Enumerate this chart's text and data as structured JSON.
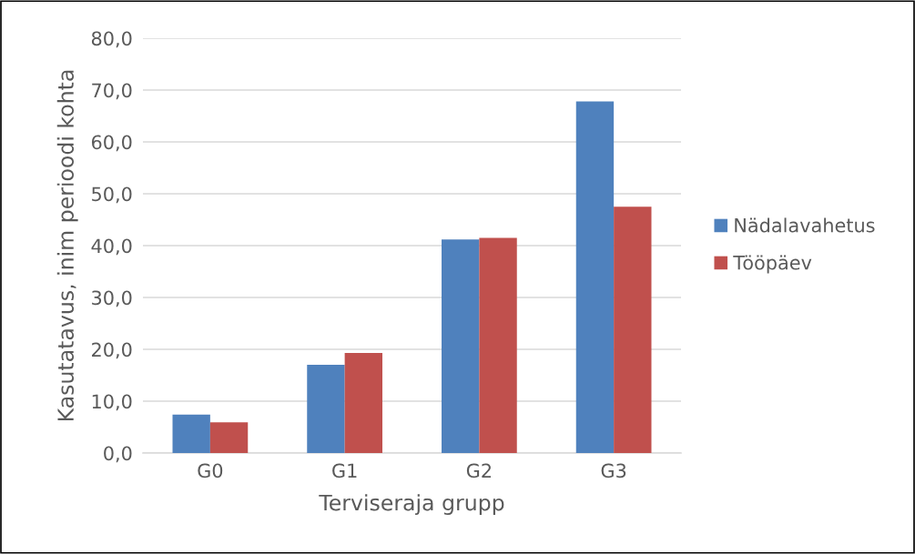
{
  "chart_data": {
    "type": "bar",
    "xlabel": "Terviseraja grupp",
    "ylabel": "Kasutatavus, inim perioodi kohta",
    "categories": [
      "G0",
      "G1",
      "G2",
      "G3"
    ],
    "series": [
      {
        "name": "Nädalavahetus",
        "color": "#4f81bd",
        "values": [
          7.4,
          17.0,
          41.2,
          67.8
        ]
      },
      {
        "name": "Tööpäev",
        "color": "#c0504d",
        "values": [
          5.9,
          19.3,
          41.5,
          47.5
        ]
      }
    ],
    "ylim": [
      0,
      80
    ],
    "yticks": [
      {
        "value": 0,
        "label": "0,0"
      },
      {
        "value": 10,
        "label": "10,0"
      },
      {
        "value": 20,
        "label": "20,0"
      },
      {
        "value": 30,
        "label": "30,0"
      },
      {
        "value": 40,
        "label": "40,0"
      },
      {
        "value": 50,
        "label": "50,0"
      },
      {
        "value": 60,
        "label": "60,0"
      },
      {
        "value": 70,
        "label": "70,0"
      },
      {
        "value": 80,
        "label": "80,0"
      }
    ],
    "grid": "y",
    "legend": "right"
  }
}
